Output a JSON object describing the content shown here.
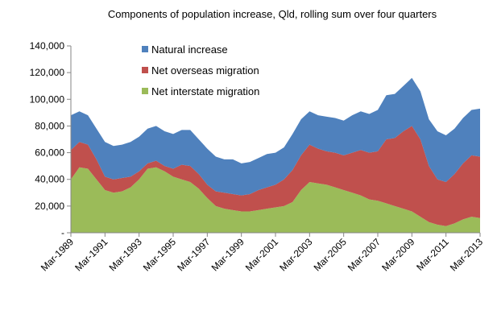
{
  "chart_data": {
    "type": "stacked-area",
    "title": "Components of population increase, Qld, rolling sum over four quarters",
    "categories": [
      "Mar-1989",
      null,
      null,
      null,
      "Mar-1991",
      null,
      null,
      null,
      "Mar-1993",
      null,
      null,
      null,
      "Mar-1995",
      null,
      null,
      null,
      "Mar-1997",
      null,
      null,
      null,
      "Mar-1999",
      null,
      null,
      null,
      "Mar-2001",
      null,
      null,
      null,
      "Mar-2003",
      null,
      null,
      null,
      "Mar-2005",
      null,
      null,
      null,
      "Mar-2007",
      null,
      null,
      null,
      "Mar-2009",
      null,
      null,
      null,
      "Mar-2011",
      null,
      null,
      null,
      "Mar-2013"
    ],
    "series": [
      {
        "name": "Net interstate migration",
        "color": "#9bbb59",
        "values": [
          40000,
          49000,
          48000,
          40000,
          32000,
          30000,
          31000,
          34000,
          40000,
          48000,
          49000,
          46000,
          42000,
          40000,
          38000,
          33000,
          26000,
          20000,
          18000,
          17000,
          16000,
          16000,
          17000,
          18000,
          19000,
          20000,
          23000,
          32000,
          38000,
          37000,
          36000,
          34000,
          32000,
          30000,
          28000,
          25000,
          24000,
          22000,
          20000,
          18000,
          16000,
          12000,
          8000,
          6000,
          5000,
          7000,
          10000,
          12000,
          11000
        ]
      },
      {
        "name": "Net overseas migration",
        "color": "#c0504d",
        "values": [
          22000,
          19000,
          18000,
          15000,
          10000,
          10000,
          10000,
          8000,
          6000,
          4000,
          5000,
          4000,
          6000,
          11000,
          12000,
          11000,
          10000,
          11000,
          12000,
          12000,
          12000,
          13000,
          15000,
          16000,
          17000,
          20000,
          24000,
          26000,
          28000,
          26000,
          25000,
          26000,
          26000,
          30000,
          34000,
          35000,
          37000,
          48000,
          51000,
          58000,
          64000,
          58000,
          42000,
          34000,
          33000,
          37000,
          42000,
          46000,
          46000
        ]
      },
      {
        "name": "Natural increase",
        "color": "#4f81bd",
        "values": [
          26000,
          23000,
          22000,
          23000,
          26000,
          25000,
          25000,
          26000,
          26000,
          26000,
          26000,
          26000,
          26000,
          26000,
          27000,
          26000,
          27000,
          26000,
          25000,
          26000,
          24000,
          24000,
          24000,
          25000,
          24000,
          24000,
          27000,
          27000,
          25000,
          25000,
          26000,
          26000,
          26000,
          28000,
          29000,
          29000,
          31000,
          33000,
          33000,
          34000,
          36000,
          36000,
          35000,
          36000,
          35000,
          34000,
          34000,
          34000,
          36000
        ]
      }
    ],
    "ylim": [
      0,
      140000
    ],
    "yticks": [
      {
        "value": 0,
        "label": "-"
      },
      {
        "value": 20000,
        "label": "20,000"
      },
      {
        "value": 40000,
        "label": "40,000"
      },
      {
        "value": 60000,
        "label": "60,000"
      },
      {
        "value": 80000,
        "label": "80,000"
      },
      {
        "value": 100000,
        "label": "100,000"
      },
      {
        "value": 120000,
        "label": "120,000"
      },
      {
        "value": 140000,
        "label": "140,000"
      }
    ],
    "grid": false
  }
}
